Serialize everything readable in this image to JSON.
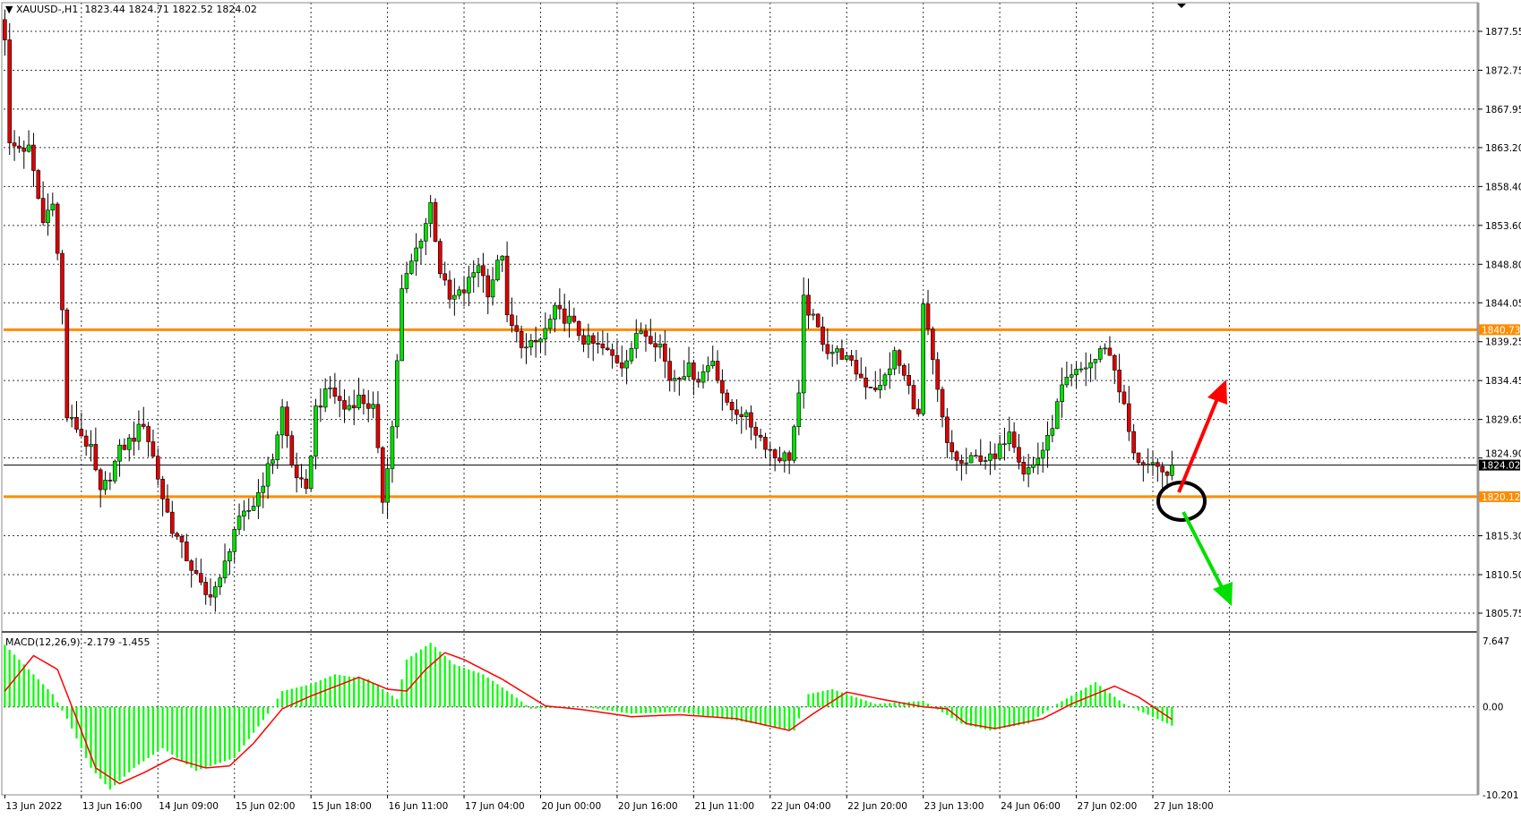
{
  "header": {
    "symbol": "XAUUSD-,H1",
    "open": "1823.44",
    "high": "1824.71",
    "low": "1822.52",
    "close": "1824.02"
  },
  "macd": {
    "label": "MACD(12,26,9)",
    "main_value": "-2.179",
    "signal_value": "-1.455",
    "axis_labels": [
      "7.647",
      "0.00",
      "-10.201"
    ]
  },
  "price_axis_labels": [
    "1877.55",
    "1872.75",
    "1867.95",
    "1863.20",
    "1858.40",
    "1853.60",
    "1848.80",
    "1844.05",
    "1839.25",
    "1834.45",
    "1829.65",
    "1824.90",
    "1815.30",
    "1810.50",
    "1805.75"
  ],
  "levels": {
    "resistance": "1840.73",
    "support": "1820.12",
    "current": "1824.02"
  },
  "time_axis_labels": [
    "13 Jun 2022",
    "13 Jun 16:00",
    "14 Jun 09:00",
    "15 Jun 02:00",
    "15 Jun 18:00",
    "16 Jun 11:00",
    "17 Jun 04:00",
    "20 Jun 00:00",
    "20 Jun 16:00",
    "21 Jun 11:00",
    "22 Jun 04:00",
    "22 Jun 20:00",
    "23 Jun 13:00",
    "24 Jun 06:00",
    "27 Jun 02:00",
    "27 Jun 18:00"
  ],
  "colors": {
    "bull": "#00e000",
    "bear": "#e00000",
    "level": "#ff8c00",
    "signal": "#ff0000",
    "histogram": "#00ff00",
    "up_arrow": "#ff0000",
    "down_arrow": "#00e000"
  },
  "chart_data": {
    "type": "candlestick",
    "bars_per_time_label": 16,
    "bar_count": 245,
    "ylim": [
      1803,
      1880
    ],
    "close_keypoints": [
      [
        0,
        1877
      ],
      [
        1,
        1863.4
      ],
      [
        5,
        1863
      ],
      [
        8,
        1853.9
      ],
      [
        10,
        1857
      ],
      [
        12,
        1843
      ],
      [
        13,
        1830
      ],
      [
        15,
        1828.7
      ],
      [
        18,
        1825.8
      ],
      [
        20,
        1820.4
      ],
      [
        22,
        1822.8
      ],
      [
        24,
        1825.8
      ],
      [
        27,
        1827.5
      ],
      [
        29,
        1829.3
      ],
      [
        31,
        1825
      ],
      [
        33,
        1820
      ],
      [
        35,
        1816.2
      ],
      [
        39,
        1811.4
      ],
      [
        42,
        1807.8
      ],
      [
        45,
        1809.6
      ],
      [
        48,
        1816.2
      ],
      [
        52,
        1819.2
      ],
      [
        56,
        1825
      ],
      [
        58,
        1831
      ],
      [
        60,
        1824
      ],
      [
        63,
        1820.4
      ],
      [
        65,
        1831
      ],
      [
        68,
        1833.5
      ],
      [
        71,
        1831
      ],
      [
        74,
        1832.3
      ],
      [
        77,
        1831
      ],
      [
        79,
        1819.8
      ],
      [
        81,
        1828.7
      ],
      [
        83,
        1845.5
      ],
      [
        85,
        1849
      ],
      [
        88,
        1853.9
      ],
      [
        89,
        1856.3
      ],
      [
        91,
        1848
      ],
      [
        93,
        1844.3
      ],
      [
        96,
        1845.5
      ],
      [
        99,
        1849
      ],
      [
        101,
        1845.5
      ],
      [
        104,
        1850.3
      ],
      [
        105,
        1841.9
      ],
      [
        109,
        1838.3
      ],
      [
        112,
        1839.5
      ],
      [
        115,
        1843
      ],
      [
        118,
        1841.9
      ],
      [
        121,
        1839.5
      ],
      [
        125,
        1838.3
      ],
      [
        129,
        1836.5
      ],
      [
        133,
        1840.7
      ],
      [
        137,
        1838.9
      ],
      [
        139,
        1834.7
      ],
      [
        143,
        1835.9
      ],
      [
        145,
        1834.7
      ],
      [
        148,
        1837.1
      ],
      [
        151,
        1831.1
      ],
      [
        154,
        1830.5
      ],
      [
        157,
        1828.2
      ],
      [
        161,
        1825.1
      ],
      [
        164,
        1825.1
      ],
      [
        166,
        1832.3
      ],
      [
        167,
        1844.3
      ],
      [
        169,
        1841.9
      ],
      [
        172,
        1838.3
      ],
      [
        175,
        1837.7
      ],
      [
        180,
        1834.1
      ],
      [
        183,
        1833.5
      ],
      [
        186,
        1837.7
      ],
      [
        189,
        1833.5
      ],
      [
        191,
        1829.9
      ],
      [
        192,
        1843.7
      ],
      [
        195,
        1832.9
      ],
      [
        197,
        1826.3
      ],
      [
        200,
        1824
      ],
      [
        204,
        1825.1
      ],
      [
        207,
        1824.6
      ],
      [
        210,
        1828.7
      ],
      [
        213,
        1823.3
      ],
      [
        215,
        1824
      ],
      [
        218,
        1827
      ],
      [
        221,
        1833.5
      ],
      [
        224,
        1835.3
      ],
      [
        228,
        1837.1
      ],
      [
        230,
        1838.9
      ],
      [
        232,
        1835.9
      ],
      [
        234,
        1831.1
      ],
      [
        236,
        1825.1
      ],
      [
        239,
        1824
      ],
      [
        242,
        1822.8
      ],
      [
        244,
        1824.02
      ]
    ],
    "macd_keypoints": [
      [
        0,
        7.19
      ],
      [
        5,
        4.34
      ],
      [
        10,
        1.48
      ],
      [
        13,
        -1.37
      ],
      [
        18,
        -7.08
      ],
      [
        22,
        -9.59
      ],
      [
        27,
        -7.08
      ],
      [
        33,
        -4.79
      ],
      [
        40,
        -7.42
      ],
      [
        48,
        -5.94
      ],
      [
        55,
        -0.8
      ],
      [
        58,
        1.83
      ],
      [
        64,
        2.63
      ],
      [
        69,
        3.77
      ],
      [
        76,
        3.2
      ],
      [
        82,
        0.91
      ],
      [
        84,
        5.48
      ],
      [
        89,
        7.42
      ],
      [
        94,
        4.91
      ],
      [
        100,
        3.77
      ],
      [
        106,
        1.48
      ],
      [
        110,
        -0.23
      ],
      [
        121,
        0
      ],
      [
        131,
        -0.8
      ],
      [
        141,
        -0.57
      ],
      [
        153,
        -1.6
      ],
      [
        165,
        -2.74
      ],
      [
        168,
        1.48
      ],
      [
        173,
        2.05
      ],
      [
        182,
        0.34
      ],
      [
        192,
        0.68
      ],
      [
        200,
        -1.94
      ],
      [
        206,
        -2.74
      ],
      [
        214,
        -1.94
      ],
      [
        220,
        0.34
      ],
      [
        228,
        2.85
      ],
      [
        234,
        0.34
      ],
      [
        244,
        -2.179
      ]
    ],
    "signal_keypoints": [
      [
        0,
        1.83
      ],
      [
        6,
        5.94
      ],
      [
        11,
        4.34
      ],
      [
        15,
        -1.37
      ],
      [
        19,
        -7.08
      ],
      [
        24,
        -8.9
      ],
      [
        29,
        -7.65
      ],
      [
        35,
        -5.94
      ],
      [
        42,
        -7.08
      ],
      [
        47,
        -6.85
      ],
      [
        52,
        -4.22
      ],
      [
        58,
        -0.23
      ],
      [
        64,
        1.26
      ],
      [
        74,
        3.42
      ],
      [
        80,
        2.05
      ],
      [
        84,
        1.83
      ],
      [
        88,
        4.34
      ],
      [
        92,
        6.28
      ],
      [
        96,
        5.48
      ],
      [
        104,
        3.2
      ],
      [
        113,
        0.11
      ],
      [
        121,
        -0.34
      ],
      [
        131,
        -1.14
      ],
      [
        141,
        -0.91
      ],
      [
        153,
        -1.37
      ],
      [
        164,
        -2.74
      ],
      [
        169,
        -0.8
      ],
      [
        176,
        1.71
      ],
      [
        183,
        0.91
      ],
      [
        192,
        0
      ],
      [
        197,
        -0.23
      ],
      [
        201,
        -1.94
      ],
      [
        207,
        -2.51
      ],
      [
        217,
        -1.37
      ],
      [
        223,
        0.34
      ],
      [
        232,
        2.4
      ],
      [
        237,
        1.14
      ],
      [
        244,
        -1.455
      ]
    ],
    "macd_ylim": [
      -10.201,
      7.647
    ]
  }
}
